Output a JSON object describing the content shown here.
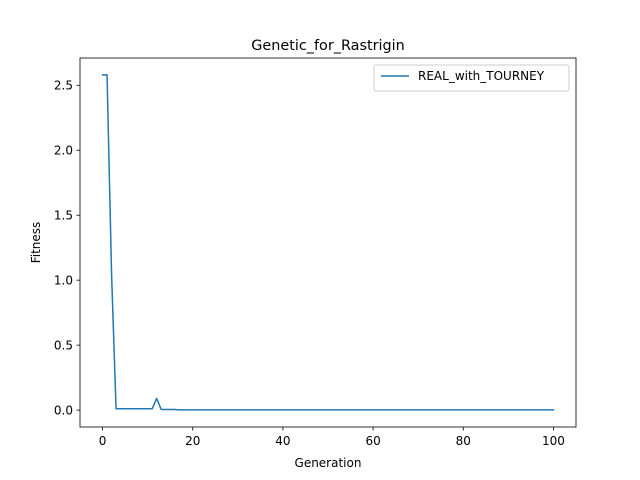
{
  "chart_data": {
    "type": "line",
    "title": "Genetic_for_Rastrigin",
    "xlabel": "Generation",
    "ylabel": "Fitness",
    "xlim": [
      -5,
      105
    ],
    "ylim": [
      -0.13,
      2.71
    ],
    "x_ticks": [
      0,
      20,
      40,
      60,
      80,
      100
    ],
    "x_tick_labels": [
      "0",
      "20",
      "40",
      "60",
      "80",
      "100"
    ],
    "y_ticks": [
      0.0,
      0.5,
      1.0,
      1.5,
      2.0,
      2.5
    ],
    "y_tick_labels": [
      "0.0",
      "0.5",
      "1.0",
      "1.5",
      "2.0",
      "2.5"
    ],
    "grid": false,
    "legend_position": "upper-right",
    "series": [
      {
        "name": "REAL_with_TOURNEY",
        "color": "#1f77b4",
        "x": [
          0,
          1,
          2,
          3,
          4,
          5,
          6,
          7,
          8,
          9,
          10,
          11,
          12,
          13,
          14,
          15,
          16,
          17,
          18,
          19,
          20,
          30,
          40,
          50,
          60,
          70,
          80,
          90,
          100
        ],
        "y": [
          2.58,
          2.58,
          1.05,
          0.01,
          0.01,
          0.01,
          0.01,
          0.01,
          0.01,
          0.01,
          0.01,
          0.01,
          0.09,
          0.005,
          0.005,
          0.005,
          0.005,
          0.002,
          0.002,
          0.002,
          0.002,
          0.002,
          0.002,
          0.002,
          0.002,
          0.002,
          0.002,
          0.002,
          0.002
        ]
      }
    ]
  }
}
